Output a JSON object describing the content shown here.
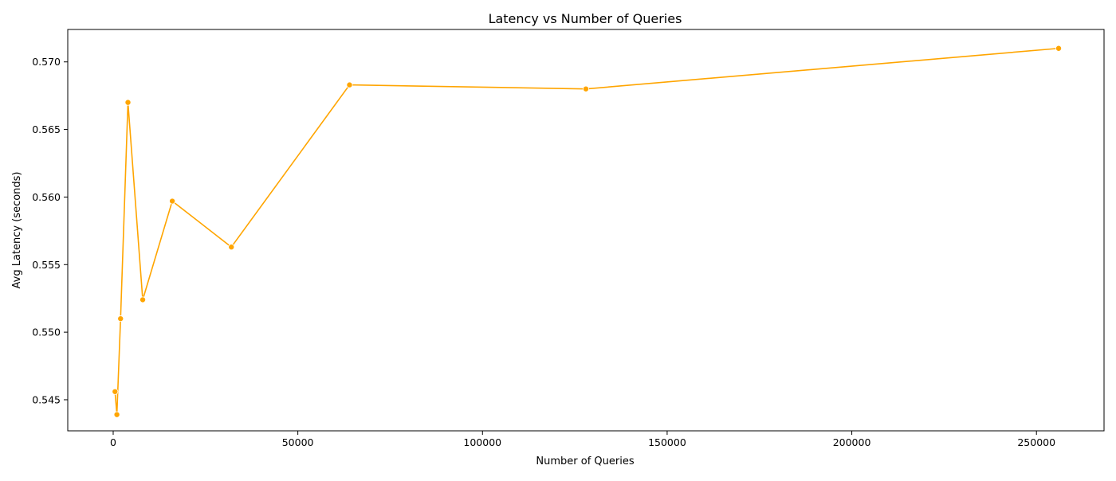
{
  "chart_data": {
    "type": "line",
    "title": "Latency vs Number of Queries",
    "xlabel": "Number of Queries",
    "ylabel": "Avg Latency (seconds)",
    "xlim": [
      -12300,
      268300
    ],
    "ylim": [
      0.5427,
      0.5724
    ],
    "xticks": [
      0,
      50000,
      100000,
      150000,
      200000,
      250000
    ],
    "xtick_labels": [
      "0",
      "50000",
      "100000",
      "150000",
      "200000",
      "250000"
    ],
    "yticks": [
      0.545,
      0.55,
      0.555,
      0.56,
      0.565,
      0.57
    ],
    "ytick_labels": [
      "0.545",
      "0.550",
      "0.555",
      "0.560",
      "0.565",
      "0.570"
    ],
    "grid": false,
    "legend": false,
    "series": [
      {
        "color": "#ffa500",
        "marker": "circle",
        "x": [
          500,
          1000,
          2000,
          4000,
          8000,
          16000,
          32000,
          64000,
          128000,
          256000
        ],
        "y": [
          0.5456,
          0.5439,
          0.551,
          0.567,
          0.5524,
          0.5597,
          0.5563,
          0.5683,
          0.568,
          0.571
        ]
      }
    ]
  }
}
